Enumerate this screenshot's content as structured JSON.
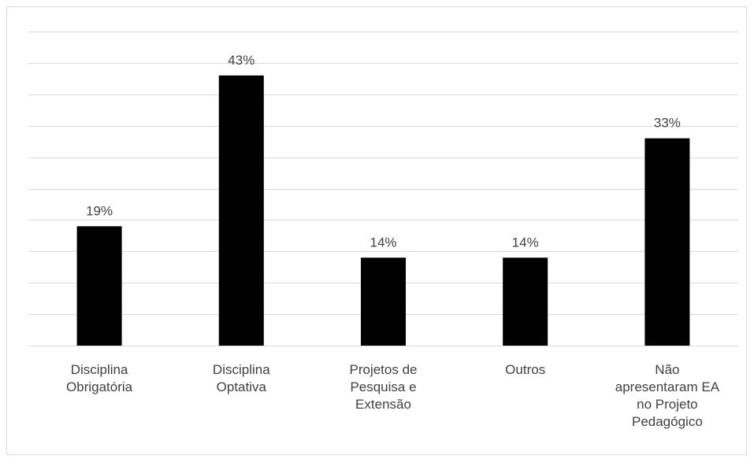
{
  "chart_data": {
    "type": "bar",
    "categories": [
      [
        "Disciplina",
        "Obrigatória"
      ],
      [
        "Disciplina",
        "Optativa"
      ],
      [
        "Projetos de",
        "Pesquisa e",
        "Extensão"
      ],
      [
        "Outros"
      ],
      [
        "Não",
        "apresentaram EA",
        "no Projeto",
        "Pedagógico"
      ]
    ],
    "values": [
      19,
      43,
      14,
      14,
      33
    ],
    "data_labels": [
      "19%",
      "43%",
      "14%",
      "14%",
      "33%"
    ],
    "ylim": [
      0,
      50
    ],
    "grid": true,
    "legend": "none",
    "colors": {
      "bar": "#000000",
      "grid": "#d9d9d9",
      "text": "#404040"
    }
  }
}
